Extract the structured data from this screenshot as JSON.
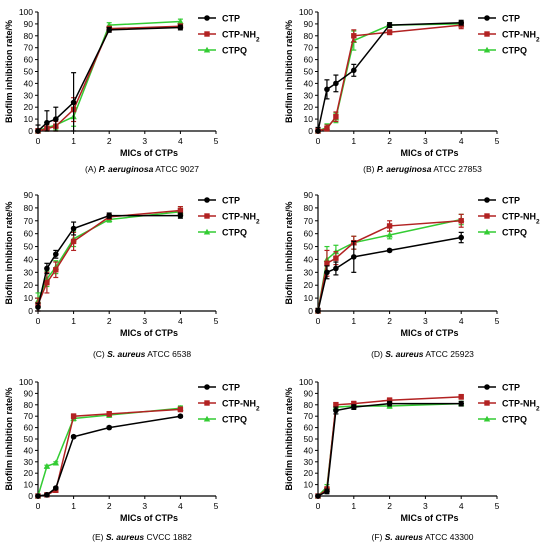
{
  "legend": {
    "entries": [
      {
        "key": "ctp",
        "label": "CTP",
        "color": "#000000",
        "marker": "circle"
      },
      {
        "key": "nh2",
        "label": "CTP-NH",
        "sub": "2",
        "color": "#b22222",
        "marker": "square"
      },
      {
        "key": "ctpq",
        "label": "CTPQ",
        "color": "#33cc33",
        "marker": "triangle"
      }
    ]
  },
  "chart_data": [
    {
      "type": "line",
      "panel": "A",
      "caption": {
        "prefix": "(A) ",
        "organism": "P. aeruginosa",
        "strain": " ATCC 9027"
      },
      "xlabel": "MICs of CTPs",
      "ylabel": "Biofilm inhibition rate/%",
      "xlim": [
        0,
        5
      ],
      "ylim": [
        0,
        100
      ],
      "xticks": [
        0,
        1,
        2,
        3,
        4,
        5
      ],
      "yticks": [
        0,
        10,
        20,
        30,
        40,
        50,
        60,
        70,
        80,
        90,
        100
      ],
      "x": [
        0,
        0.25,
        0.5,
        1,
        2,
        4
      ],
      "series": [
        {
          "name": "CTP",
          "values": [
            0,
            7,
            10,
            24,
            85,
            87
          ],
          "errors": [
            5,
            10,
            10,
            25,
            2,
            2
          ]
        },
        {
          "name": "CTP-NH2",
          "values": [
            0,
            2,
            4,
            18,
            86,
            88
          ],
          "errors": [
            2,
            3,
            4,
            10,
            2,
            2
          ]
        },
        {
          "name": "CTPQ",
          "values": [
            0,
            3,
            5,
            12,
            89,
            92
          ],
          "errors": [
            2,
            3,
            4,
            8,
            2,
            2
          ]
        }
      ]
    },
    {
      "type": "line",
      "panel": "B",
      "caption": {
        "prefix": "(B) ",
        "organism": "P. aeruginosa",
        "strain": " ATCC 27853"
      },
      "xlabel": "MICs of CTPs",
      "ylabel": "Biofilm inhibition rate/%",
      "xlim": [
        0,
        5
      ],
      "ylim": [
        0,
        100
      ],
      "xticks": [
        0,
        1,
        2,
        3,
        4,
        5
      ],
      "yticks": [
        0,
        10,
        20,
        30,
        40,
        50,
        60,
        70,
        80,
        90,
        100
      ],
      "x": [
        0,
        0.25,
        0.5,
        1,
        2,
        4
      ],
      "series": [
        {
          "name": "CTP",
          "values": [
            0,
            35,
            40,
            51,
            89,
            91
          ],
          "errors": [
            3,
            8,
            7,
            5,
            2,
            2
          ]
        },
        {
          "name": "CTP-NH2",
          "values": [
            0,
            2,
            12,
            80,
            83,
            89
          ],
          "errors": [
            2,
            3,
            4,
            5,
            2,
            3
          ]
        },
        {
          "name": "CTPQ",
          "values": [
            0,
            3,
            11,
            76,
            89,
            90
          ],
          "errors": [
            2,
            3,
            4,
            8,
            2,
            2
          ]
        }
      ]
    },
    {
      "type": "line",
      "panel": "C",
      "caption": {
        "prefix": "(C) ",
        "organism": "S. aureus",
        "strain": "  ATCC 6538"
      },
      "xlabel": "MICs of CTPs",
      "ylabel": "Biofilm inhibition rate/%",
      "xlim": [
        0,
        5
      ],
      "ylim": [
        0,
        90
      ],
      "xticks": [
        0,
        1,
        2,
        3,
        4,
        5
      ],
      "yticks": [
        0,
        10,
        20,
        30,
        40,
        50,
        60,
        70,
        80,
        90
      ],
      "x": [
        0,
        0.25,
        0.5,
        1,
        2,
        4
      ],
      "series": [
        {
          "name": "CTP",
          "values": [
            3,
            33,
            44,
            64,
            74,
            74
          ],
          "errors": [
            3,
            4,
            3,
            5,
            2,
            2
          ]
        },
        {
          "name": "CTP-NH2",
          "values": [
            5,
            22,
            32,
            54,
            73,
            78
          ],
          "errors": [
            5,
            8,
            6,
            7,
            2,
            3
          ]
        },
        {
          "name": "CTPQ",
          "values": [
            8,
            25,
            34,
            56,
            71,
            77
          ],
          "errors": [
            6,
            6,
            5,
            6,
            2,
            4
          ]
        }
      ]
    },
    {
      "type": "line",
      "panel": "D",
      "caption": {
        "prefix": "(D) ",
        "organism": "S. aureus",
        "strain": "  ATCC 25923"
      },
      "xlabel": "MICs of CTPs",
      "ylabel": "Biofilm inhibition rate/%",
      "xlim": [
        0,
        5
      ],
      "ylim": [
        0,
        90
      ],
      "xticks": [
        0,
        1,
        2,
        3,
        4,
        5
      ],
      "yticks": [
        0,
        10,
        20,
        30,
        40,
        50,
        60,
        70,
        80,
        90
      ],
      "x": [
        0,
        0.25,
        0.5,
        1,
        2,
        4
      ],
      "series": [
        {
          "name": "CTP",
          "values": [
            0,
            30,
            33,
            42,
            47,
            57
          ],
          "errors": [
            2,
            5,
            5,
            12,
            1,
            4
          ]
        },
        {
          "name": "CTP-NH2",
          "values": [
            0,
            37,
            41,
            53,
            66,
            70
          ],
          "errors": [
            2,
            10,
            5,
            5,
            4,
            5
          ]
        },
        {
          "name": "CTPQ",
          "values": [
            0,
            40,
            46,
            53,
            59,
            71
          ],
          "errors": [
            2,
            10,
            5,
            5,
            3,
            4
          ]
        }
      ]
    },
    {
      "type": "line",
      "panel": "E",
      "caption": {
        "prefix": "(E) ",
        "organism": "S. aureus",
        "strain": "  CVCC 1882"
      },
      "xlabel": "MICs of CTPs",
      "ylabel": "Biofilm inhibition rate/%",
      "xlim": [
        0,
        5
      ],
      "ylim": [
        0,
        100
      ],
      "xticks": [
        0,
        1,
        2,
        3,
        4,
        5
      ],
      "yticks": [
        0,
        10,
        20,
        30,
        40,
        50,
        60,
        70,
        80,
        90,
        100
      ],
      "x": [
        0,
        0.25,
        0.5,
        1,
        2,
        4
      ],
      "series": [
        {
          "name": "CTP",
          "values": [
            0,
            1,
            7,
            52,
            60,
            70
          ],
          "errors": [
            1,
            1,
            1,
            1,
            1,
            1
          ]
        },
        {
          "name": "CTP-NH2",
          "values": [
            0,
            1,
            5,
            70,
            72,
            76
          ],
          "errors": [
            1,
            1,
            1,
            2,
            2,
            2
          ]
        },
        {
          "name": "CTPQ",
          "values": [
            0,
            26,
            29,
            68,
            71,
            77
          ],
          "errors": [
            1,
            1,
            1,
            2,
            2,
            2
          ]
        }
      ]
    },
    {
      "type": "line",
      "panel": "F",
      "caption": {
        "prefix": "(F) ",
        "organism": "S. aureus",
        "strain": "  ATCC 43300"
      },
      "xlabel": "MICs of CTPs",
      "ylabel": "Biofilm inhibition rate/%",
      "xlim": [
        0,
        5
      ],
      "ylim": [
        0,
        100
      ],
      "xticks": [
        0,
        1,
        2,
        3,
        4,
        5
      ],
      "yticks": [
        0,
        10,
        20,
        30,
        40,
        50,
        60,
        70,
        80,
        90,
        100
      ],
      "x": [
        0,
        0.25,
        0.5,
        1,
        2,
        4
      ],
      "series": [
        {
          "name": "CTP",
          "values": [
            0,
            4,
            75,
            78,
            81,
            81
          ],
          "errors": [
            1,
            2,
            3,
            2,
            2,
            2
          ]
        },
        {
          "name": "CTP-NH2",
          "values": [
            0,
            6,
            80,
            81,
            84,
            87
          ],
          "errors": [
            1,
            2,
            2,
            2,
            2,
            2
          ]
        },
        {
          "name": "CTPQ",
          "values": [
            0,
            8,
            78,
            79,
            79,
            81
          ],
          "errors": [
            1,
            2,
            2,
            2,
            2,
            2
          ]
        }
      ]
    }
  ]
}
